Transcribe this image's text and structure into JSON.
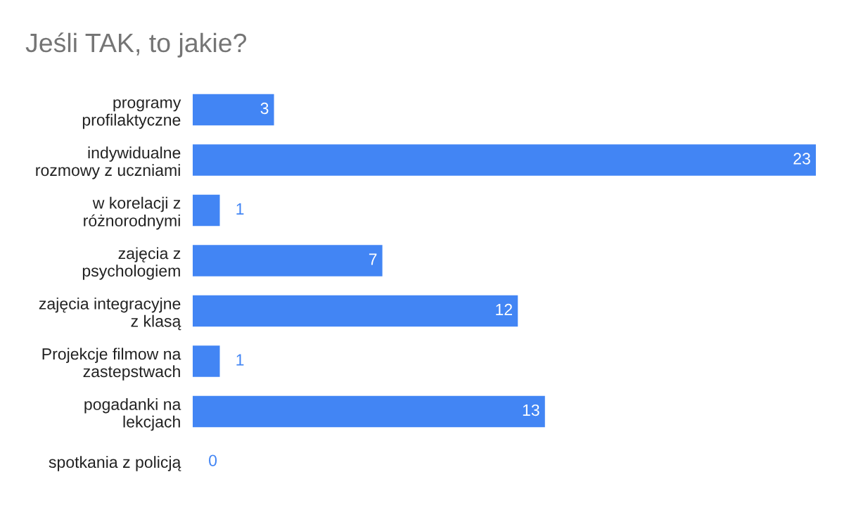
{
  "chart_data": {
    "type": "bar",
    "orientation": "horizontal",
    "title": "Jeśli TAK, to jakie?",
    "categories": [
      "programy\nprofilaktyczne",
      "indywidualne\nrozmowy z uczniami",
      "w korelacji z\nróżnorodnymi",
      "zajęcia z\npsychologiem",
      "zajęcia integracyjne\nz klasą",
      "Projekcje filmow na\nzastepstwach",
      "pogadanki na\nlekcjach",
      "spotkania z policją"
    ],
    "values": [
      3,
      23,
      1,
      7,
      12,
      1,
      13,
      0
    ],
    "color": "#4285f4",
    "data_labels": true,
    "grid": false,
    "legend": false
  }
}
